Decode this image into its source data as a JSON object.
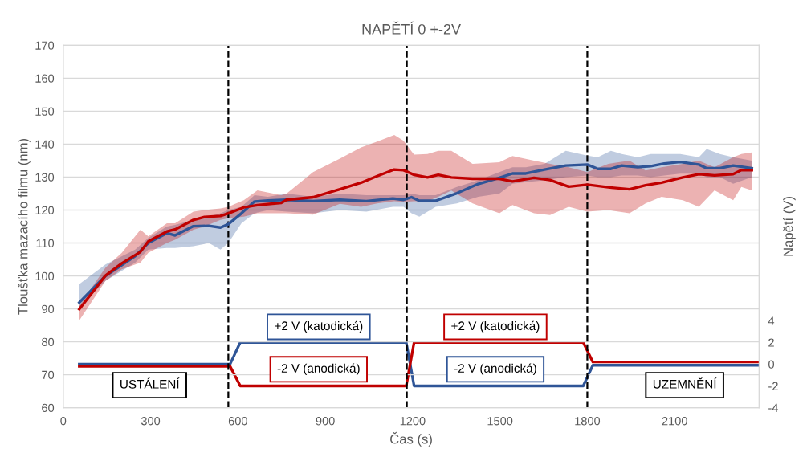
{
  "chart_data": {
    "type": "line",
    "title": "NAPĚTÍ 0 +-2V",
    "xlabel": "Čas (s)",
    "ylabel": "Tloušťka mazacího filmu (nm)",
    "y2label": "Napětí (V)",
    "xlim": [
      0,
      2390
    ],
    "xticks": [
      0,
      300,
      600,
      900,
      1200,
      1500,
      1800,
      2100
    ],
    "ylim": [
      60,
      170
    ],
    "yticks": [
      60,
      70,
      80,
      90,
      100,
      110,
      120,
      130,
      140,
      150,
      160,
      170
    ],
    "y2lim": [
      -4,
      29.3
    ],
    "y2ticks": [
      -4,
      -2,
      0,
      2,
      4
    ],
    "grid": "y",
    "legend": false,
    "marker": "none",
    "line_style": "solid",
    "series": [
      {
        "color": "#2f5597",
        "x": [
          55,
          145,
          247,
          292,
          356,
          384,
          447,
          500,
          540,
          567,
          612,
          657,
          703,
          767,
          858,
          950,
          1041,
          1132,
          1169,
          1196,
          1223,
          1279,
          1352,
          1425,
          1498,
          1543,
          1589,
          1653,
          1726,
          1800,
          1836,
          1881,
          1918,
          1973,
          2018,
          2064,
          2119,
          2183,
          2210,
          2255,
          2301,
          2365
        ],
        "values": [
          91.9,
          100,
          106,
          110,
          113,
          112.3,
          115.1,
          115.2,
          114.7,
          115.7,
          119,
          122.6,
          122.9,
          123.1,
          122.7,
          123.1,
          122.7,
          123.5,
          123.1,
          123.9,
          122.8,
          122.8,
          125.1,
          127.9,
          129.8,
          131.1,
          131.1,
          132.3,
          133.5,
          133.8,
          132.5,
          132.5,
          133.5,
          133,
          133.3,
          134.1,
          134.6,
          133.8,
          132.7,
          132.7,
          133.5,
          132.7
        ],
        "lower": [
          90.5,
          98.5,
          104,
          108,
          108.5,
          108.5,
          109,
          110,
          108,
          110,
          116,
          119,
          120,
          119.5,
          119,
          120,
          119.5,
          121,
          121,
          119,
          118,
          121,
          122,
          124,
          125,
          128,
          128.5,
          129,
          130,
          130.5,
          130,
          130,
          130.5,
          130.5,
          130,
          130.5,
          131,
          131,
          130,
          130,
          128,
          130
        ],
        "upper": [
          97.5,
          103.5,
          108,
          111.5,
          115,
          115.5,
          117,
          118,
          119,
          120,
          121,
          124.5,
          124,
          125,
          124,
          125,
          124.5,
          124.5,
          124.5,
          125,
          124.5,
          124.5,
          127,
          129,
          131.5,
          133,
          133,
          134,
          138,
          136.5,
          136,
          138,
          137,
          136,
          137,
          137,
          137,
          136,
          138.5,
          137,
          136,
          135
        ]
      },
      {
        "color": "#c00000",
        "x": [
          55,
          145,
          201,
          265,
          292,
          356,
          384,
          447,
          485,
          540,
          567,
          620,
          667,
          749,
          767,
          858,
          950,
          1023,
          1078,
          1137,
          1169,
          1205,
          1251,
          1288,
          1333,
          1406,
          1498,
          1543,
          1617,
          1672,
          1736,
          1800,
          1872,
          1945,
          2000,
          2055,
          2128,
          2183,
          2237,
          2301,
          2329,
          2365
        ],
        "values": [
          89.9,
          100.1,
          103.8,
          107.3,
          110.5,
          113.5,
          114.1,
          117,
          117.9,
          118.2,
          119,
          120.8,
          121.5,
          122.2,
          123.1,
          123.9,
          126.3,
          128.3,
          130.3,
          132.3,
          132.1,
          130.7,
          129.9,
          130.7,
          129.9,
          129.5,
          129.5,
          128.7,
          129.8,
          129.1,
          127.1,
          127.7,
          126.9,
          126.3,
          127.5,
          128.3,
          129.9,
          130.9,
          130.5,
          130.9,
          132.1,
          132.1
        ],
        "lower": [
          86.5,
          98.5,
          102,
          104,
          107,
          110,
          111,
          114,
          115,
          117,
          117.5,
          118,
          119,
          119,
          119,
          118.6,
          121.9,
          121,
          122,
          122.7,
          122.5,
          122.7,
          122.7,
          124,
          125.9,
          122,
          119,
          121.5,
          119,
          118.5,
          121,
          119.5,
          120,
          119,
          122,
          124,
          123,
          121,
          126,
          123,
          127,
          126
        ],
        "upper": [
          91,
          102.5,
          107,
          114,
          112,
          116,
          116,
          119.5,
          120,
          120.5,
          121,
          123,
          126,
          124.5,
          125,
          131.5,
          135.6,
          139,
          140.8,
          142.8,
          141,
          136.8,
          137,
          138,
          138,
          134,
          134.5,
          136.4,
          135,
          134,
          133,
          131.5,
          134,
          135,
          132,
          133,
          134,
          135,
          133,
          136,
          137,
          137.5
        ]
      },
      {
        "color": "#2f5597",
        "axis": "y2",
        "x": [
          55,
          573,
          608,
          1178,
          1205,
          1786,
          1819,
          2385
        ],
        "values": [
          0,
          0,
          2,
          2,
          -2,
          -2,
          -0.1,
          -0.1
        ]
      },
      {
        "color": "#c00000",
        "axis": "y2",
        "x": [
          55,
          573,
          608,
          1178,
          1205,
          1786,
          1819,
          2385
        ],
        "values": [
          -0.2,
          -0.2,
          -2,
          -2,
          2,
          2,
          0.2,
          0.2
        ]
      }
    ],
    "ref_lines": [
      {
        "axis": "x",
        "value": 567,
        "color": "#000000",
        "line_style": "dashed"
      },
      {
        "axis": "x",
        "value": 1180,
        "color": "#000000",
        "line_style": "dashed"
      },
      {
        "axis": "x",
        "value": 1800,
        "color": "#000000",
        "line_style": "dashed"
      }
    ],
    "annotations": [
      "USTÁLENÍ",
      "+2 V (katodická)",
      "-2 V (anodická)",
      "+2 V (katodická)",
      "-2 V (anodická)",
      "UZEMNĚNÍ"
    ]
  }
}
